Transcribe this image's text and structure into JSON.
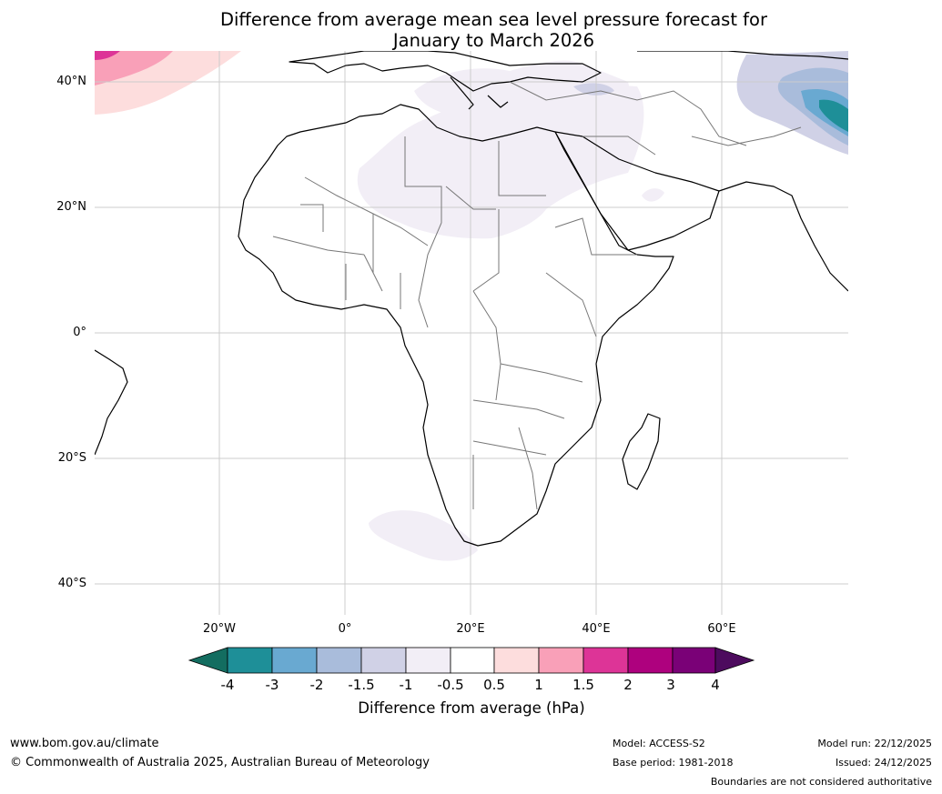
{
  "title": {
    "line1": "Difference from average mean sea level pressure forecast for",
    "line2": "January to March 2026"
  },
  "map": {
    "region": "Africa",
    "lat_labels": [
      "40°N",
      "20°N",
      "0°",
      "20°S",
      "40°S"
    ],
    "lon_labels": [
      "20°W",
      "0°",
      "20°E",
      "40°E",
      "60°E"
    ]
  },
  "colorbar": {
    "title": "Difference from average (hPa)",
    "tick_labels": [
      "-4",
      "-3",
      "-2",
      "-1.5",
      "-1",
      "-0.5",
      "0.5",
      "1",
      "1.5",
      "2",
      "3",
      "4"
    ],
    "colors": [
      "#136d60",
      "#1e8f98",
      "#69a9d1",
      "#a9bcdb",
      "#d0d1e6",
      "#f2eef6",
      "#ffffff",
      "#fddddd",
      "#f9a0b8",
      "#dd3497",
      "#ae017e",
      "#7a0177",
      "#4d0b5e"
    ]
  },
  "footer": {
    "website": "www.bom.gov.au/climate",
    "copyright": "© Commonwealth of Australia 2025, Australian Bureau of Meteorology",
    "model": "Model: ACCESS-S2",
    "base_period": "Base period: 1981-2018",
    "model_run": "Model run: 22/12/2025",
    "issued": "Issued: 24/12/2025",
    "boundaries_note": "Boundaries are not considered authoritative"
  }
}
